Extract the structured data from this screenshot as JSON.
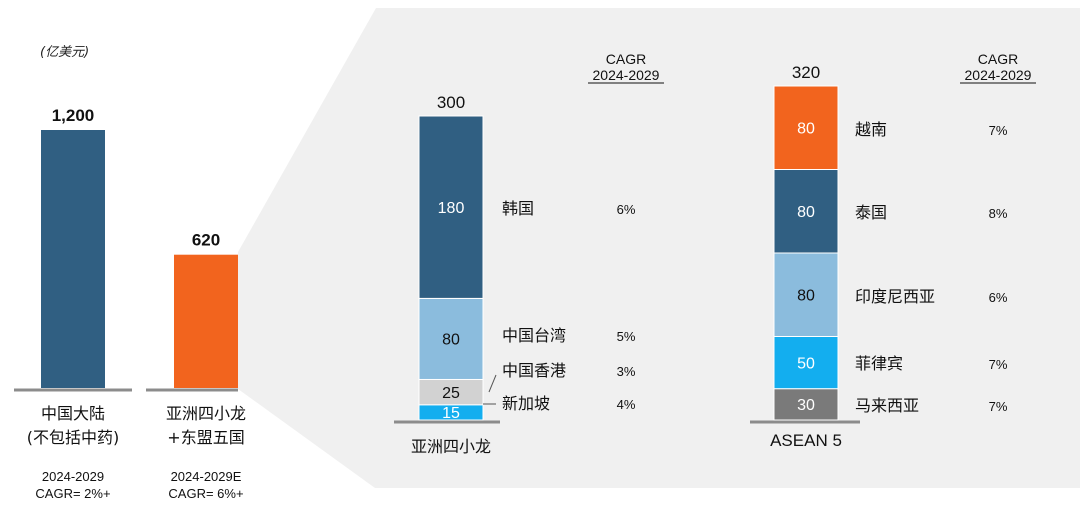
{
  "chart_data": [
    {
      "type": "bar",
      "unit": "(亿美元)",
      "categories": [
        "中国大陆 (不包括中药)",
        "亚洲四小龙 +东盟五国"
      ],
      "category_lines": [
        [
          "中国大陆",
          "(不包括中药)"
        ],
        [
          "亚洲四小龙",
          "+东盟五国"
        ]
      ],
      "values": [
        1200,
        620
      ],
      "value_labels": [
        "1,200",
        "620"
      ],
      "period_labels": [
        "2024-2029",
        "2024-2029E"
      ],
      "cagr_labels": [
        "CAGR= 2%+",
        "CAGR= 6%+"
      ],
      "colors": [
        "#305f82",
        "#f2641e"
      ],
      "ylim": [
        0,
        1200
      ]
    },
    {
      "type": "bar",
      "stacked": true,
      "category": "亚洲四小龙",
      "total_label": "300",
      "cagr_header": [
        "CAGR",
        "2024-2029"
      ],
      "segments": [
        {
          "name": "新加坡",
          "value": 15,
          "label": "15",
          "cagr": "4%",
          "color": "#13aeef"
        },
        {
          "name": "中国香港",
          "value": 25,
          "label": "25",
          "cagr": "3%",
          "color": "#d2d2d2"
        },
        {
          "name": "中国台湾",
          "value": 80,
          "label": "80",
          "cagr": "5%",
          "color": "#8bbcdd"
        },
        {
          "name": "韩国",
          "value": 180,
          "label": "180",
          "cagr": "6%",
          "color": "#305f82"
        }
      ]
    },
    {
      "type": "bar",
      "stacked": true,
      "category": "ASEAN 5",
      "total_label": "320",
      "cagr_header": [
        "CAGR",
        "2024-2029"
      ],
      "segments": [
        {
          "name": "马来西亚",
          "value": 30,
          "label": "30",
          "cagr": "7%",
          "color": "#7a7a7a"
        },
        {
          "name": "菲律宾",
          "value": 50,
          "label": "50",
          "cagr": "7%",
          "color": "#13aeef"
        },
        {
          "name": "印度尼西亚",
          "value": 80,
          "label": "80",
          "cagr": "6%",
          "color": "#8bbcdd"
        },
        {
          "name": "泰国",
          "value": 80,
          "label": "80",
          "cagr": "8%",
          "color": "#305f82"
        },
        {
          "name": "越南",
          "value": 80,
          "label": "80",
          "cagr": "7%",
          "color": "#f2641e"
        }
      ]
    }
  ]
}
